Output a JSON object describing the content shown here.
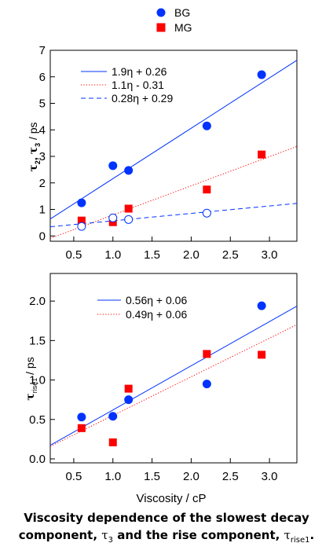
{
  "legend_top": {
    "items": [
      {
        "label": "BG",
        "color": "#0033ff",
        "marker": "circle"
      },
      {
        "label": "MG",
        "color": "#ff0000",
        "marker": "square"
      }
    ]
  },
  "caption": {
    "line1": "Viscosity dependence of the slowest decay",
    "line2_prefix": "component, ",
    "tau_symbol": "τ",
    "tau3_sub": "3",
    "line2_mid": " and the rise component, ",
    "rise_sub": "rise1",
    "line2_end": "."
  },
  "chart_data": [
    {
      "type": "scatter",
      "xlabel": "",
      "ylabel": "τ2, τ3 / ps",
      "ylabel_parts": {
        "tau": "τ",
        "sub2": "2",
        "comma": ", ",
        "sub3": "3",
        "unit": " / ps"
      },
      "xlim": [
        0.2,
        3.35
      ],
      "ylim": [
        -0.2,
        7.0
      ],
      "xticks": [
        0.5,
        1.0,
        1.5,
        2.0,
        2.5,
        3.0
      ],
      "xtick_labels": [
        "0.5",
        "1.0",
        "1.5",
        "2.0",
        "2.5",
        "3.0"
      ],
      "yticks": [
        0,
        1,
        2,
        3,
        4,
        5,
        6,
        7
      ],
      "ytick_labels": [
        "0",
        "1",
        "2",
        "3",
        "4",
        "5",
        "6",
        "7"
      ],
      "grid": false,
      "legend_position": "top-left",
      "series": [
        {
          "name": "BG",
          "marker": "filled-circle",
          "color": "#0033ff",
          "x": [
            0.6,
            1.0,
            1.2,
            2.2,
            2.9
          ],
          "y": [
            1.25,
            2.65,
            2.47,
            4.15,
            6.08
          ]
        },
        {
          "name": "MG",
          "marker": "filled-square",
          "color": "#ff0000",
          "x": [
            0.6,
            1.0,
            1.2,
            2.2,
            2.9
          ],
          "y": [
            0.58,
            0.52,
            1.03,
            1.75,
            3.07
          ]
        },
        {
          "marker": "open-circle",
          "color": "#0033ff",
          "x": [
            0.6,
            1.0,
            1.2,
            2.2
          ],
          "y": [
            0.36,
            0.68,
            0.62,
            0.86
          ]
        }
      ],
      "fits": [
        {
          "label": "1.9η + 0.26",
          "slope": 1.9,
          "intercept": 0.26,
          "color": "#0033ff",
          "style": "solid"
        },
        {
          "label": "1.1η - 0.31",
          "slope": 1.1,
          "intercept": -0.31,
          "color": "#ff0000",
          "style": "dotted"
        },
        {
          "label": "0.28η + 0.29",
          "slope": 0.28,
          "intercept": 0.29,
          "color": "#0033ff",
          "style": "dashed"
        }
      ]
    },
    {
      "type": "scatter",
      "xlabel": "Viscosity / cP",
      "ylabel": "τrise1 / ps",
      "ylabel_parts": {
        "tau": "τ",
        "sub": "rise1",
        "unit": " / ps"
      },
      "xlim": [
        0.2,
        3.35
      ],
      "ylim": [
        -0.05,
        2.35
      ],
      "xticks": [
        0.5,
        1.0,
        1.5,
        2.0,
        2.5,
        3.0
      ],
      "xtick_labels": [
        "0.5",
        "1.0",
        "1.5",
        "2.0",
        "2.5",
        "3.0"
      ],
      "yticks": [
        0.0,
        0.5,
        1.0,
        1.5,
        2.0
      ],
      "ytick_labels": [
        "0.0",
        "0.5",
        "1.0",
        "1.5",
        "2.0"
      ],
      "grid": false,
      "legend_position": "top-left",
      "series": [
        {
          "name": "BG",
          "marker": "filled-circle",
          "color": "#0033ff",
          "x": [
            0.6,
            1.0,
            1.2,
            2.2,
            2.9
          ],
          "y": [
            0.53,
            0.54,
            0.75,
            0.95,
            1.94
          ]
        },
        {
          "name": "MG",
          "marker": "filled-square",
          "color": "#ff0000",
          "x": [
            0.6,
            1.0,
            1.2,
            2.2,
            2.9
          ],
          "y": [
            0.39,
            0.21,
            0.89,
            1.33,
            1.32
          ]
        }
      ],
      "fits": [
        {
          "label": "0.56η + 0.06",
          "slope": 0.56,
          "intercept": 0.06,
          "color": "#0033ff",
          "style": "solid"
        },
        {
          "label": "0.49η + 0.06",
          "slope": 0.49,
          "intercept": 0.06,
          "color": "#ff0000",
          "style": "dotted"
        }
      ]
    }
  ]
}
